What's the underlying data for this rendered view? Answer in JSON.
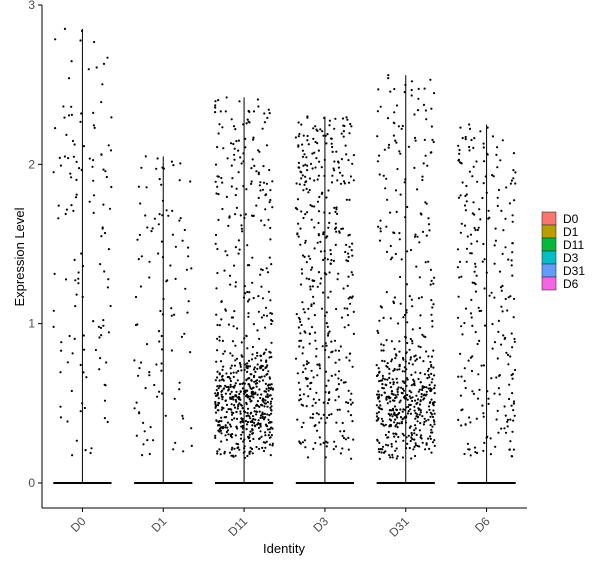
{
  "chart_data": {
    "type": "violin",
    "xlabel": "Identity",
    "ylabel": "Expression Level",
    "categories": [
      "D0",
      "D1",
      "D11",
      "D3",
      "D31",
      "D6"
    ],
    "ylim": [
      -0.15,
      3
    ],
    "yticks": [
      0,
      1,
      2,
      3
    ],
    "max_values": [
      2.85,
      2.05,
      2.42,
      2.3,
      2.56,
      2.25
    ],
    "point_counts_nonzero": [
      130,
      110,
      700,
      420,
      560,
      260
    ],
    "zero_baseline": 0,
    "legend": {
      "position": "right",
      "entries": [
        {
          "label": "D0",
          "color": "#F8766D"
        },
        {
          "label": "D1",
          "color": "#B79F00"
        },
        {
          "label": "D11",
          "color": "#00BA38"
        },
        {
          "label": "D3",
          "color": "#00BFC4"
        },
        {
          "label": "D31",
          "color": "#619CFF"
        },
        {
          "label": "D6",
          "color": "#F564E3"
        }
      ]
    },
    "point_color": "#000000",
    "grid": false
  }
}
